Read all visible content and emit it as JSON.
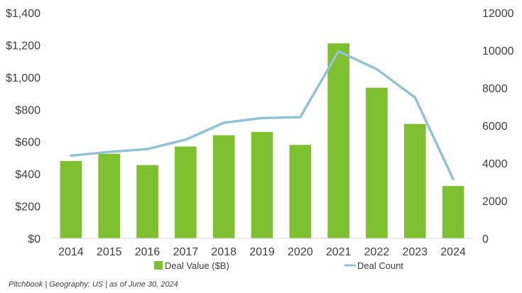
{
  "chart_data": {
    "type": "bar+line",
    "categories": [
      "2014",
      "2015",
      "2016",
      "2017",
      "2018",
      "2019",
      "2020",
      "2021",
      "2022",
      "2023",
      "2024"
    ],
    "series": [
      {
        "name": "Deal Value ($B)",
        "type": "bar",
        "axis": "left",
        "values": [
          480,
          525,
          455,
          570,
          640,
          660,
          580,
          1210,
          935,
          710,
          325
        ]
      },
      {
        "name": "Deal Count",
        "type": "line",
        "axis": "right",
        "values": [
          4400,
          4600,
          4750,
          5250,
          6150,
          6400,
          6450,
          9950,
          9000,
          7500,
          3150
        ]
      }
    ],
    "left_axis": {
      "ylim": [
        0,
        1400
      ],
      "ticks": [
        0,
        200,
        400,
        600,
        800,
        1000,
        1200,
        1400
      ],
      "tick_labels": [
        "$0",
        "$200",
        "$400",
        "$600",
        "$800",
        "$1,000",
        "$1,200",
        "$1,400"
      ]
    },
    "right_axis": {
      "ylim": [
        0,
        12000
      ],
      "ticks": [
        0,
        2000,
        4000,
        6000,
        8000,
        10000,
        12000
      ],
      "tick_labels": [
        "0",
        "2000",
        "4000",
        "6000",
        "8000",
        "10000",
        "12000"
      ]
    },
    "legend_position": "bottom",
    "colors": {
      "bar": "#7fc031",
      "line": "#93c3d3",
      "text": "#404040"
    }
  },
  "source_note": "Pitchbook | Geography: US | as of June 30, 2024"
}
